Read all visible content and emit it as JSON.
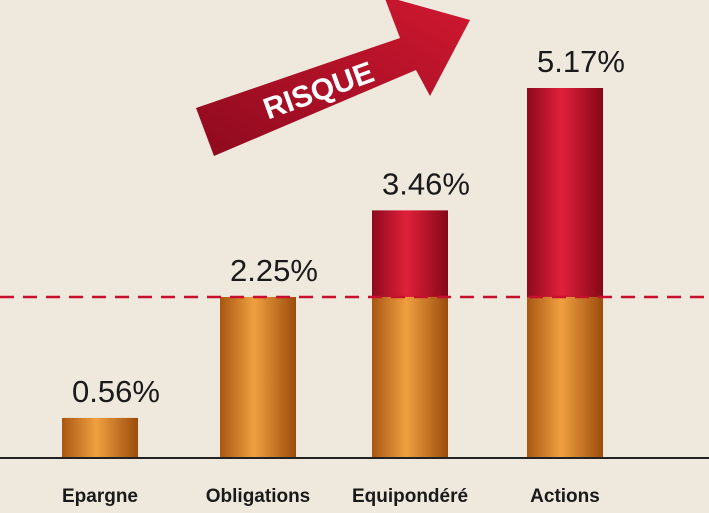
{
  "chart_data": {
    "type": "bar",
    "annotation": "RISQUE",
    "categories": [
      "Epargne",
      "Obligations",
      "Equipondéré",
      "Actions"
    ],
    "values": [
      0.56,
      2.25,
      3.46,
      5.17
    ],
    "value_labels": [
      "0.56%",
      "2.25%",
      "3.46%",
      "5.17%"
    ],
    "threshold": 2.25,
    "color": "#d9822b",
    "risk_color": "#c8102e"
  }
}
